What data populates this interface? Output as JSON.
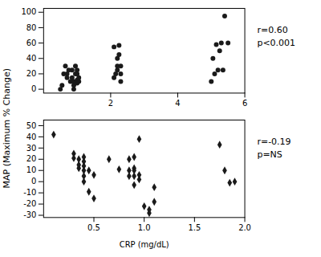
{
  "chart_data": [
    {
      "type": "scatter",
      "ylabel": "MAP (Maximum % Change)",
      "x": [
        0.5,
        0.55,
        0.6,
        0.65,
        0.7,
        0.7,
        0.75,
        0.8,
        0.85,
        0.85,
        0.9,
        0.9,
        0.9,
        0.95,
        0.95,
        1.0,
        1.0,
        1.0,
        1.0,
        1.05,
        1.05,
        2.1,
        2.1,
        2.15,
        2.2,
        2.2,
        2.2,
        2.25,
        2.25,
        2.3,
        2.3,
        2.3,
        5.0,
        5.05,
        5.1,
        5.15,
        5.2,
        5.25,
        5.3,
        5.35,
        5.4,
        5.5
      ],
      "values": [
        0,
        5,
        20,
        30,
        15,
        20,
        25,
        10,
        15,
        25,
        0,
        5,
        10,
        20,
        30,
        8,
        12,
        20,
        25,
        10,
        15,
        15,
        55,
        20,
        25,
        30,
        40,
        45,
        57,
        10,
        20,
        30,
        10,
        40,
        20,
        58,
        25,
        50,
        60,
        25,
        95,
        60
      ],
      "xlim": [
        0,
        6
      ],
      "ylim": [
        -5,
        105
      ],
      "xticks": [
        2,
        4,
        6
      ],
      "yticks": [
        0,
        20,
        40,
        60,
        80,
        100
      ],
      "annotations": [
        "r=0.60",
        "p<0.001"
      ],
      "marker": "circle",
      "color": "#1a1a1a",
      "grid": false
    },
    {
      "type": "scatter",
      "xlabel": "CRP (mg/dL)",
      "x": [
        0.1,
        0.3,
        0.3,
        0.35,
        0.35,
        0.35,
        0.4,
        0.4,
        0.4,
        0.4,
        0.4,
        0.4,
        0.45,
        0.45,
        0.5,
        0.5,
        0.65,
        0.75,
        0.85,
        0.85,
        0.85,
        0.9,
        0.9,
        0.9,
        0.9,
        0.9,
        0.95,
        0.95,
        0.95,
        1.0,
        1.05,
        1.05,
        1.1,
        1.1,
        1.75,
        1.8,
        1.85,
        1.9
      ],
      "values": [
        42,
        21,
        25,
        12,
        15,
        20,
        0,
        5,
        10,
        14,
        18,
        22,
        10,
        -9,
        6,
        -15,
        20,
        11,
        20,
        10,
        5,
        22,
        12,
        10,
        5,
        -3,
        38,
        6,
        2,
        -22,
        -25,
        -28,
        -5,
        -18,
        33,
        10,
        -1,
        0
      ],
      "xlim": [
        0,
        2
      ],
      "ylim": [
        -32,
        55
      ],
      "xticks": [
        0.5,
        {
          "value": 1,
          "label": "1.0"
        },
        1.5,
        {
          "value": 2,
          "label": "2.0"
        }
      ],
      "yticks": [
        -30,
        -20,
        -10,
        0,
        10,
        20,
        30,
        40,
        50
      ],
      "annotations": [
        "r=-0.19",
        "p=NS"
      ],
      "marker": "diamond",
      "color": "#1a1a1a",
      "grid": false
    }
  ]
}
